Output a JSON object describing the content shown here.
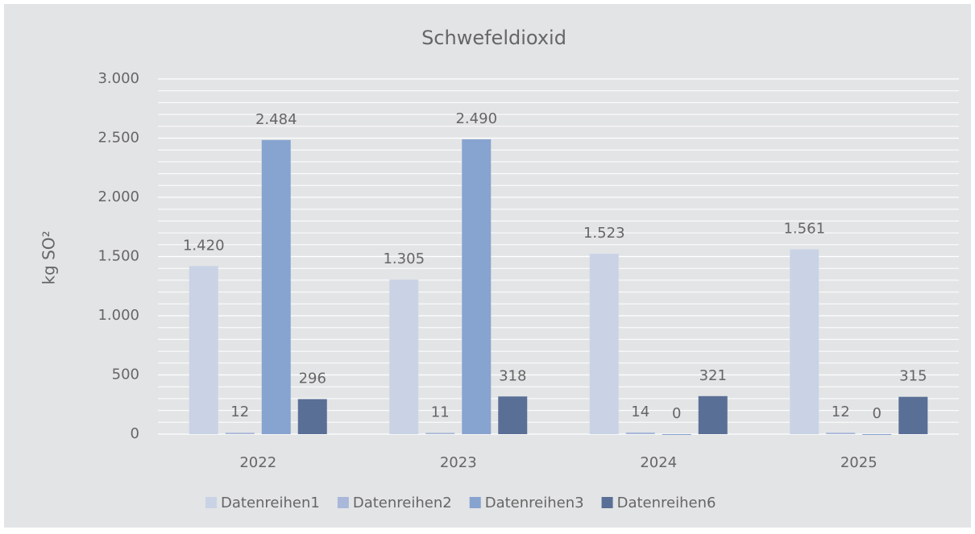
{
  "chart_data": {
    "type": "bar",
    "title": "Schwefeldioxid",
    "y_label": "kg SO²",
    "categories": [
      "2022",
      "2023",
      "2024",
      "2025"
    ],
    "series": [
      {
        "name": "Datenreihen1",
        "color": "#c9d3e5",
        "values": [
          1420,
          1305,
          1523,
          1561
        ],
        "value_labels": [
          "1.420",
          "1.305",
          "1.523",
          "1.561"
        ]
      },
      {
        "name": "Datenreihen2",
        "color": "#a9b8d9",
        "values": [
          12,
          11,
          14,
          12
        ]
      },
      {
        "name": "Datenreihen3",
        "color": "#87a3cf",
        "values": [
          2484,
          2490,
          0,
          0
        ],
        "value_labels": [
          "2.484",
          "2.490",
          "0",
          "0"
        ]
      },
      {
        "name": "Datenreihen6",
        "color": "#5a6f96",
        "values": [
          296,
          318,
          321,
          315
        ]
      }
    ],
    "ylim": [
      0,
      3000
    ],
    "yticks": [
      0,
      500,
      {
        "value": 1000,
        "label": "1.000"
      },
      {
        "value": 1500,
        "label": "1.500"
      },
      {
        "value": 2000,
        "label": "2.000"
      },
      {
        "value": 2500,
        "label": "2.500"
      },
      {
        "value": 3000,
        "label": "3.000"
      }
    ],
    "minor_yticks": [
      100,
      200,
      300,
      400,
      600,
      700,
      800,
      900,
      1100,
      1200,
      1300,
      1400,
      1600,
      1700,
      1800,
      1900,
      2100,
      2200,
      2300,
      2400,
      2600,
      2700,
      2800,
      2900
    ],
    "grid": true,
    "legend": "bottom"
  }
}
